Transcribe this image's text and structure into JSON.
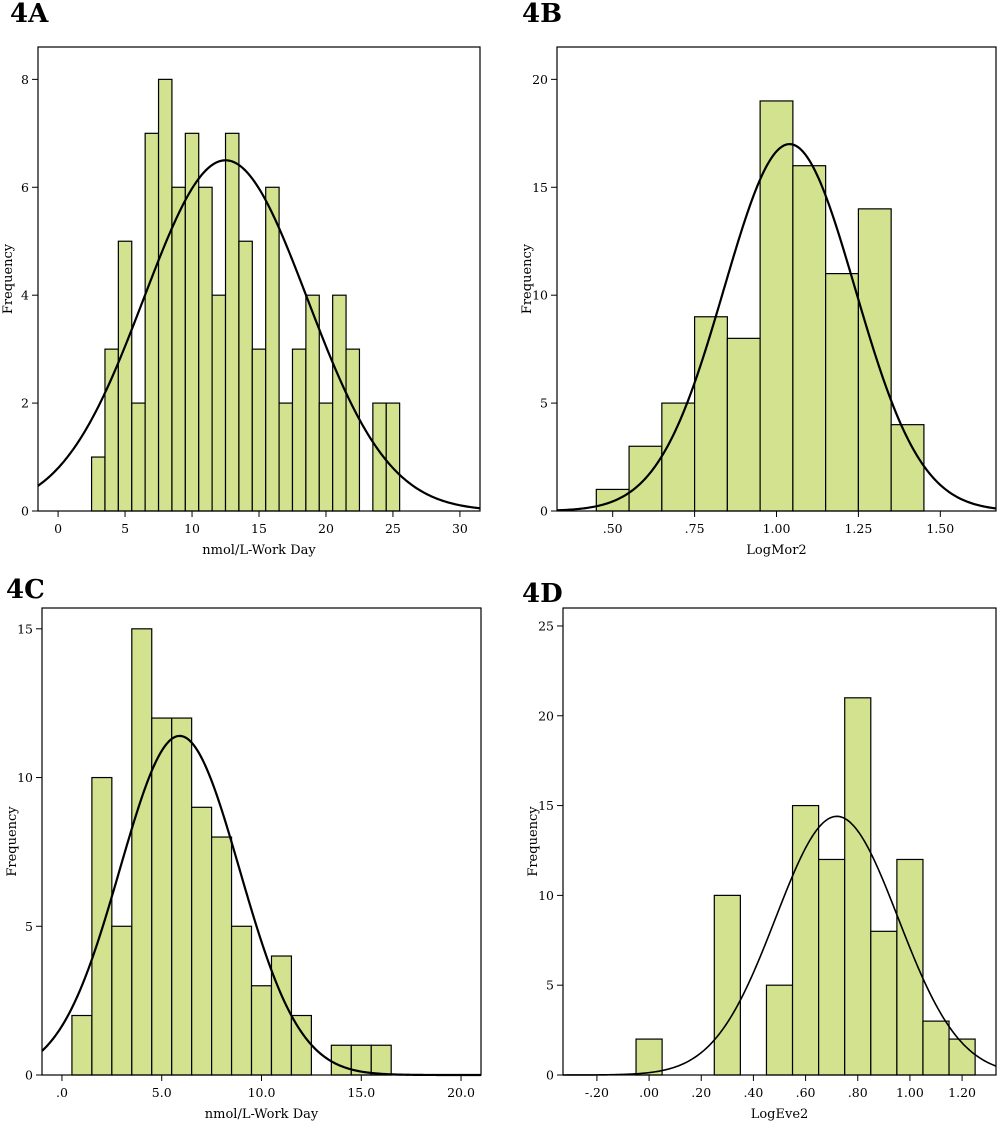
{
  "chart_data": [
    {
      "panel": "4A",
      "type": "bar",
      "subtype": "histogram",
      "xlabel": "nmol/L-Work Day",
      "ylabel": "Frequency",
      "xlim": [
        -1.5,
        31.5
      ],
      "ylim": [
        0,
        8.6
      ],
      "xticks": [
        0,
        5,
        10,
        15,
        20,
        25,
        30
      ],
      "xtick_labels": [
        "0",
        "5",
        "10",
        "15",
        "20",
        "25",
        "30"
      ],
      "yticks": [
        0,
        2,
        4,
        6,
        8
      ],
      "ytick_labels": [
        "0",
        "2",
        "4",
        "6",
        "8"
      ],
      "bin_width": 1,
      "bars": [
        {
          "start": 2.5,
          "count": 1
        },
        {
          "start": 3.5,
          "count": 3
        },
        {
          "start": 4.5,
          "count": 5
        },
        {
          "start": 5.5,
          "count": 2
        },
        {
          "start": 6.5,
          "count": 7
        },
        {
          "start": 7.5,
          "count": 8
        },
        {
          "start": 8.5,
          "count": 6
        },
        {
          "start": 9.5,
          "count": 7
        },
        {
          "start": 10.5,
          "count": 6
        },
        {
          "start": 11.5,
          "count": 4
        },
        {
          "start": 12.5,
          "count": 7
        },
        {
          "start": 13.5,
          "count": 5
        },
        {
          "start": 14.5,
          "count": 3
        },
        {
          "start": 15.5,
          "count": 6
        },
        {
          "start": 16.5,
          "count": 2
        },
        {
          "start": 17.5,
          "count": 3
        },
        {
          "start": 18.5,
          "count": 4
        },
        {
          "start": 19.5,
          "count": 2
        },
        {
          "start": 20.5,
          "count": 4
        },
        {
          "start": 21.5,
          "count": 3
        },
        {
          "start": 22.5,
          "count": 0
        },
        {
          "start": 23.5,
          "count": 2
        },
        {
          "start": 24.5,
          "count": 2
        }
      ],
      "normal_curve": {
        "mean": 12.5,
        "sd": 6.1,
        "peak": 6.5
      }
    },
    {
      "panel": "4B",
      "type": "bar",
      "subtype": "histogram",
      "xlabel": "LogMor2",
      "ylabel": "Frequency",
      "xlim": [
        0.33,
        1.67
      ],
      "ylim": [
        0,
        21.5
      ],
      "xticks": [
        0.5,
        0.75,
        1.0,
        1.25,
        1.5
      ],
      "xtick_labels": [
        ".50",
        ".75",
        "1.00",
        "1.25",
        "1.50"
      ],
      "yticks": [
        0,
        5,
        10,
        15,
        20
      ],
      "ytick_labels": [
        "0",
        "5",
        "10",
        "15",
        "20"
      ],
      "bin_width": 0.1,
      "bars": [
        {
          "start": 0.45,
          "count": 1
        },
        {
          "start": 0.55,
          "count": 3
        },
        {
          "start": 0.65,
          "count": 5
        },
        {
          "start": 0.75,
          "count": 9
        },
        {
          "start": 0.85,
          "count": 8
        },
        {
          "start": 0.95,
          "count": 19
        },
        {
          "start": 1.05,
          "count": 16
        },
        {
          "start": 1.15,
          "count": 11
        },
        {
          "start": 1.25,
          "count": 14
        },
        {
          "start": 1.35,
          "count": 4
        }
      ],
      "normal_curve": {
        "mean": 1.04,
        "sd": 0.2,
        "peak": 17
      }
    },
    {
      "panel": "4C",
      "type": "bar",
      "subtype": "histogram",
      "xlabel": "nmol/L-Work Day",
      "ylabel": "Frequency",
      "xlim": [
        -1.0,
        21.0
      ],
      "ylim": [
        0,
        15.7
      ],
      "xticks": [
        0,
        5,
        10,
        15,
        20
      ],
      "xtick_labels": [
        ".0",
        "5.0",
        "10.0",
        "15.0",
        "20.0"
      ],
      "yticks": [
        0,
        5,
        10,
        15
      ],
      "ytick_labels": [
        "0",
        "5",
        "10",
        "15"
      ],
      "bin_width": 1,
      "bars": [
        {
          "start": 0.5,
          "count": 2
        },
        {
          "start": 1.5,
          "count": 10
        },
        {
          "start": 2.5,
          "count": 5
        },
        {
          "start": 3.5,
          "count": 15
        },
        {
          "start": 4.5,
          "count": 12
        },
        {
          "start": 5.5,
          "count": 12
        },
        {
          "start": 6.5,
          "count": 9
        },
        {
          "start": 7.5,
          "count": 8
        },
        {
          "start": 8.5,
          "count": 5
        },
        {
          "start": 9.5,
          "count": 3
        },
        {
          "start": 10.5,
          "count": 4
        },
        {
          "start": 11.5,
          "count": 2
        },
        {
          "start": 12.5,
          "count": 0
        },
        {
          "start": 13.5,
          "count": 1
        },
        {
          "start": 14.5,
          "count": 1
        },
        {
          "start": 15.5,
          "count": 1
        }
      ],
      "normal_curve": {
        "mean": 5.9,
        "sd": 3.0,
        "peak": 11.4
      }
    },
    {
      "panel": "4D",
      "type": "bar",
      "subtype": "histogram",
      "xlabel": "LogEve2",
      "ylabel": "Frequency",
      "xlim": [
        -0.33,
        1.33
      ],
      "ylim": [
        0,
        26
      ],
      "xticks": [
        -0.2,
        0.0,
        0.2,
        0.4,
        0.6,
        0.8,
        1.0,
        1.2
      ],
      "xtick_labels": [
        "-.20",
        ".00",
        ".20",
        ".40",
        ".60",
        ".80",
        "1.00",
        "1.20"
      ],
      "yticks": [
        0,
        5,
        10,
        15,
        20,
        25
      ],
      "ytick_labels": [
        "0",
        "5",
        "10",
        "15",
        "20",
        "25"
      ],
      "bin_width": 0.1,
      "bars": [
        {
          "start": -0.05,
          "count": 2
        },
        {
          "start": 0.25,
          "count": 10
        },
        {
          "start": 0.45,
          "count": 5
        },
        {
          "start": 0.55,
          "count": 15
        },
        {
          "start": 0.65,
          "count": 12
        },
        {
          "start": 0.75,
          "count": 21
        },
        {
          "start": 0.85,
          "count": 8
        },
        {
          "start": 0.95,
          "count": 12
        },
        {
          "start": 1.05,
          "count": 3
        },
        {
          "start": 1.15,
          "count": 2
        }
      ],
      "normal_curve": {
        "mean": 0.72,
        "sd": 0.235,
        "peak": 14.4
      }
    }
  ],
  "colors": {
    "bar_fill": "#d3e28f",
    "bar_stroke": "#000000",
    "curve": "#000000",
    "frame": "#000000"
  }
}
